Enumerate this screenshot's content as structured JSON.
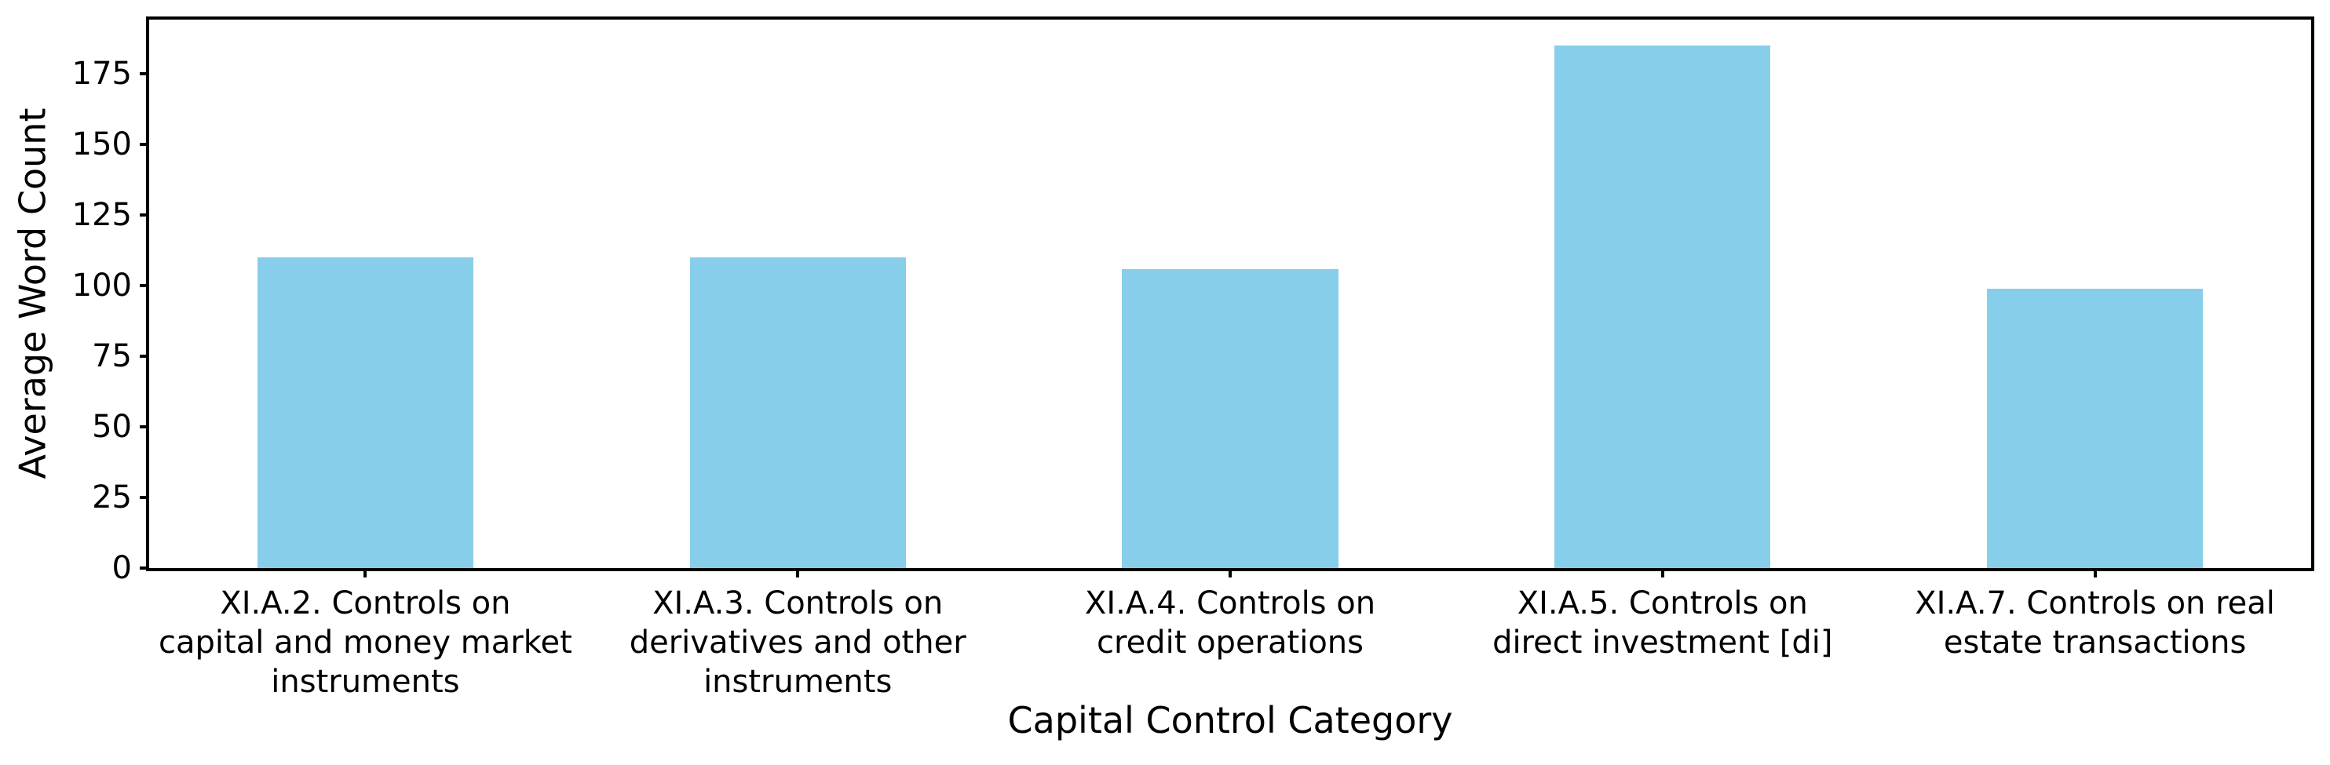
{
  "chart_data": {
    "type": "bar",
    "title": "",
    "xlabel": "Capital Control Category",
    "ylabel": "Average Word Count",
    "categories": [
      "XI.A.2. Controls on capital and money market instruments",
      "XI.A.3. Controls on derivatives and other instruments",
      "XI.A.4. Controls on credit operations",
      "XI.A.5. Controls on direct investment [di]",
      "XI.A.7. Controls on real estate transactions"
    ],
    "tick_labels": [
      "XI.A.2. Controls on\ncapital and money market\ninstruments",
      "XI.A.3. Controls on\nderivatives and other\ninstruments",
      "XI.A.4. Controls on\ncredit operations",
      "XI.A.5. Controls on\ndirect investment [di]",
      "XI.A.7. Controls on real\nestate transactions"
    ],
    "values": [
      110,
      110,
      106,
      185,
      99
    ],
    "yticks": [
      0,
      25,
      50,
      75,
      100,
      125,
      150,
      175
    ],
    "ylim": [
      0,
      194.25
    ],
    "bar_width_fraction": 0.5,
    "grid": false,
    "legend": null,
    "bar_color": "#87CEEB",
    "axis_color": "#000000",
    "background_color": "#FFFFFF"
  }
}
